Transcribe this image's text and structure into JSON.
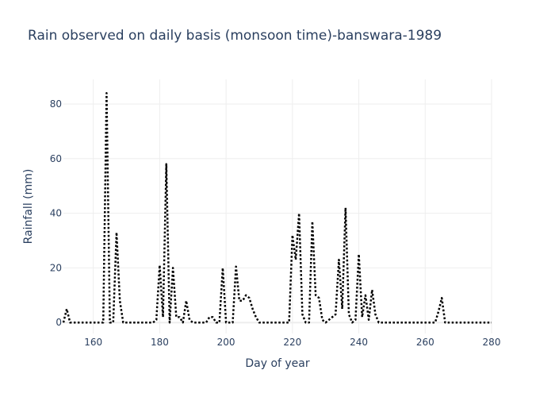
{
  "chart_data": {
    "type": "line",
    "title": "Rain observed on daily basis (monsoon time)-banswara-1989",
    "xlabel": "Day of year",
    "ylabel": "Rainfall (mm)",
    "xlim": [
      151,
      280
    ],
    "ylim": [
      -4,
      89
    ],
    "xticks": [
      160,
      180,
      200,
      220,
      240,
      260,
      280
    ],
    "yticks": [
      0,
      20,
      40,
      60,
      80
    ],
    "grid": true,
    "line_style": "dotted",
    "line_color": "#000000",
    "series": [
      {
        "x": [
          151,
          152,
          153,
          154,
          155,
          156,
          157,
          158,
          159,
          160,
          161,
          162,
          163,
          164,
          165,
          166,
          167,
          168,
          169,
          170,
          171,
          172,
          173,
          174,
          175,
          176,
          177,
          178,
          179,
          180,
          181,
          182,
          183,
          184,
          185,
          186,
          187,
          188,
          189,
          190,
          191,
          192,
          193,
          194,
          195,
          196,
          197,
          198,
          199,
          200,
          201,
          202,
          203,
          204,
          205,
          206,
          207,
          208,
          209,
          210,
          211,
          212,
          213,
          214,
          215,
          216,
          217,
          218,
          219,
          220,
          221,
          222,
          223,
          224,
          225,
          226,
          227,
          228,
          229,
          230,
          231,
          232,
          233,
          234,
          235,
          236,
          237,
          238,
          239,
          240,
          241,
          242,
          243,
          244,
          245,
          246,
          247,
          248,
          249,
          250,
          251,
          252,
          253,
          254,
          255,
          256,
          257,
          258,
          259,
          260,
          261,
          262,
          263,
          264,
          265,
          266,
          267,
          268,
          269,
          270,
          271,
          272,
          273,
          274,
          275,
          276,
          277,
          278,
          279,
          280
        ],
        "y": [
          0,
          5,
          0,
          0,
          0,
          0,
          0,
          0,
          0,
          0,
          0,
          0,
          0,
          84,
          0,
          0,
          33,
          8,
          0,
          0,
          0,
          0,
          0,
          0,
          0,
          0,
          0,
          0,
          1,
          21,
          2,
          58,
          0,
          20,
          2,
          2,
          0,
          8,
          1,
          0,
          0,
          0,
          0,
          0,
          2,
          2,
          0,
          0,
          20,
          0,
          0,
          0,
          20.5,
          8,
          8,
          10,
          9,
          5,
          2,
          0,
          0,
          0,
          0,
          0,
          0,
          0,
          0,
          0,
          0,
          32,
          23,
          40,
          3,
          0,
          0,
          37,
          10,
          9,
          1,
          0,
          1,
          2,
          3,
          23,
          5,
          42,
          3,
          0,
          1,
          25,
          2,
          10,
          1,
          12,
          3,
          0,
          0,
          0,
          0,
          0,
          0,
          0,
          0,
          0,
          0,
          0,
          0,
          0,
          0,
          0,
          0,
          0,
          0,
          4,
          9,
          0,
          0,
          0,
          0,
          0,
          0,
          0,
          0,
          0,
          0,
          0,
          0,
          0,
          0,
          0
        ]
      }
    ]
  }
}
